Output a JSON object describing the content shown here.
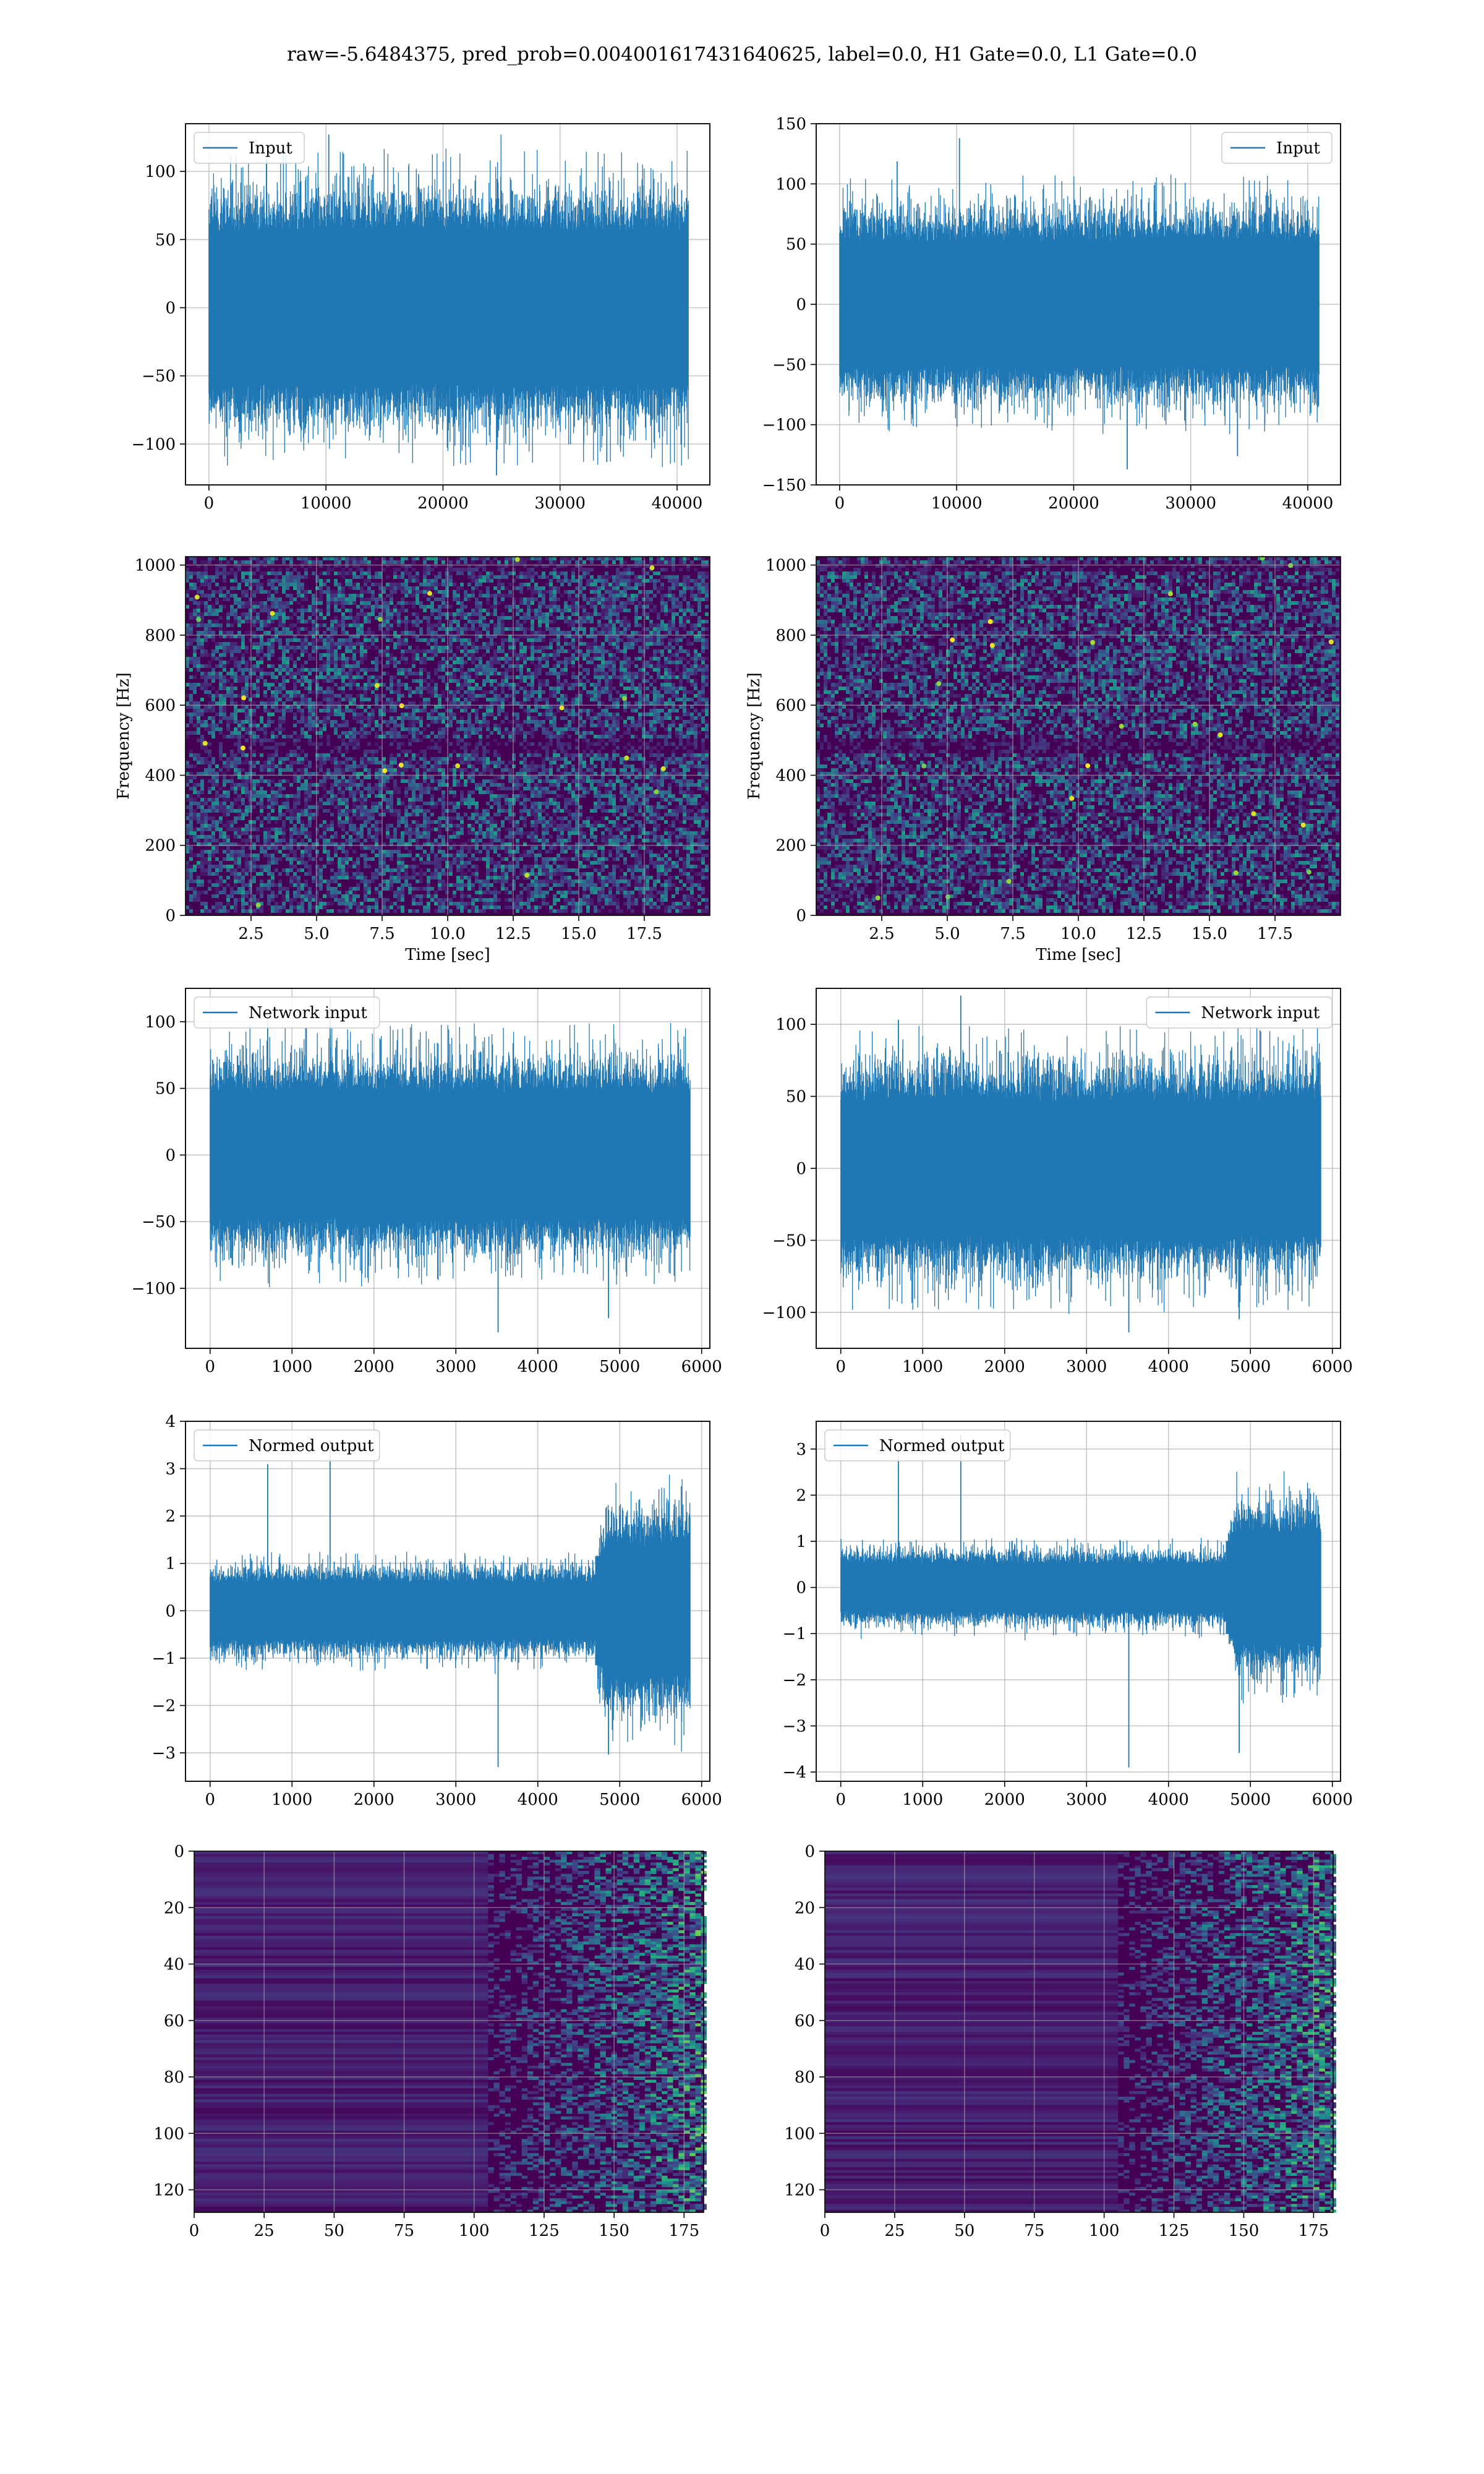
{
  "figure": {
    "suptitle": "raw=-5.6484375, pred_prob=0.004001617431640625, label=0.0, H1 Gate=0.0, L1 Gate=0.0"
  },
  "colors": {
    "line": "#1f77b4",
    "viridis_dark": "#440154",
    "viridis_mid": "#31688e",
    "viridis_green": "#35b779",
    "viridis_yellow": "#fde725",
    "grid": "#b0b0b0"
  },
  "chart_data": [
    {
      "id": "input-left",
      "type": "line",
      "legend": "Input",
      "legend_pos": "top-left",
      "xlim": [
        -2000,
        42800
      ],
      "ylim": [
        -130,
        135
      ],
      "xticks": [
        0,
        10000,
        20000,
        30000,
        40000
      ],
      "yticks": [
        -100,
        -50,
        0,
        50,
        100
      ],
      "n_samples": 40960,
      "band": 65,
      "max": 127,
      "min": -123,
      "grid": true
    },
    {
      "id": "input-right",
      "type": "line",
      "legend": "Input",
      "legend_pos": "top-right",
      "xlim": [
        -2000,
        42800
      ],
      "ylim": [
        -150,
        150
      ],
      "xticks": [
        0,
        10000,
        20000,
        30000,
        40000
      ],
      "yticks": [
        -150,
        -100,
        -50,
        0,
        50,
        100,
        150
      ],
      "n_samples": 40960,
      "band": 60,
      "max": 138,
      "min": -137,
      "grid": true
    },
    {
      "id": "spec-left",
      "type": "heatmap",
      "colormap": "viridis",
      "xlabel": "Time [sec]",
      "ylabel": "Frequency [Hz]",
      "xlim": [
        0,
        20
      ],
      "ylim": [
        0,
        1024
      ],
      "xticks": [
        2.5,
        5.0,
        7.5,
        10.0,
        12.5,
        15.0,
        17.5
      ],
      "yticks": [
        0,
        200,
        400,
        600,
        800,
        1000
      ],
      "grid": true
    },
    {
      "id": "spec-right",
      "type": "heatmap",
      "colormap": "viridis",
      "xlabel": "Time [sec]",
      "ylabel": "Frequency [Hz]",
      "xlim": [
        0,
        20
      ],
      "ylim": [
        0,
        1024
      ],
      "xticks": [
        2.5,
        5.0,
        7.5,
        10.0,
        12.5,
        15.0,
        17.5
      ],
      "yticks": [
        0,
        200,
        400,
        600,
        800,
        1000
      ],
      "grid": true
    },
    {
      "id": "network-left",
      "type": "line",
      "legend": "Network input",
      "legend_pos": "top-left",
      "xlim": [
        -300,
        6100
      ],
      "ylim": [
        -145,
        125
      ],
      "xticks": [
        0,
        1000,
        2000,
        3000,
        4000,
        5000,
        6000
      ],
      "yticks": [
        -100,
        -50,
        0,
        50,
        100
      ],
      "n_samples": 5860,
      "band": 55,
      "max": 118,
      "min": -133,
      "grid": true
    },
    {
      "id": "network-right",
      "type": "line",
      "legend": "Network input",
      "legend_pos": "top-right",
      "xlim": [
        -300,
        6100
      ],
      "ylim": [
        -125,
        125
      ],
      "xticks": [
        0,
        1000,
        2000,
        3000,
        4000,
        5000,
        6000
      ],
      "yticks": [
        -100,
        -50,
        0,
        50,
        100
      ],
      "n_samples": 5860,
      "band": 55,
      "max": 120,
      "min": -114,
      "grid": true
    },
    {
      "id": "normed-left",
      "type": "line",
      "legend": "Normed output",
      "legend_pos": "top-left",
      "xlim": [
        -300,
        6100
      ],
      "ylim": [
        -3.6,
        4.0
      ],
      "xticks": [
        0,
        1000,
        2000,
        3000,
        4000,
        5000,
        6000
      ],
      "yticks": [
        -3,
        -2,
        -1,
        0,
        1,
        2,
        3,
        4
      ],
      "n_samples": 5860,
      "band": 0.7,
      "burst_from": 4700,
      "burst_band": 1.6,
      "max": 3.6,
      "min": -3.3,
      "grid": true
    },
    {
      "id": "normed-right",
      "type": "line",
      "legend": "Normed output",
      "legend_pos": "top-left",
      "xlim": [
        -300,
        6100
      ],
      "ylim": [
        -4.2,
        3.6
      ],
      "xticks": [
        0,
        1000,
        2000,
        3000,
        4000,
        5000,
        6000
      ],
      "yticks": [
        -4,
        -3,
        -2,
        -1,
        0,
        1,
        2,
        3
      ],
      "n_samples": 5860,
      "band": 0.6,
      "burst_from": 4700,
      "burst_band": 1.4,
      "max": 3.3,
      "min": -3.9,
      "grid": true
    },
    {
      "id": "qt-left",
      "type": "heatmap",
      "colormap": "viridis",
      "xlim": [
        0,
        182
      ],
      "ylim": [
        128,
        0
      ],
      "xticks": [
        0,
        25,
        50,
        75,
        100,
        125,
        150,
        175
      ],
      "yticks": [
        0,
        20,
        40,
        60,
        80,
        100,
        120
      ],
      "grid": true
    },
    {
      "id": "qt-right",
      "type": "heatmap",
      "colormap": "viridis",
      "xlim": [
        0,
        182
      ],
      "ylim": [
        128,
        0
      ],
      "xticks": [
        0,
        25,
        50,
        75,
        100,
        125,
        150,
        175
      ],
      "yticks": [
        0,
        20,
        40,
        60,
        80,
        100,
        120
      ],
      "grid": true
    }
  ]
}
